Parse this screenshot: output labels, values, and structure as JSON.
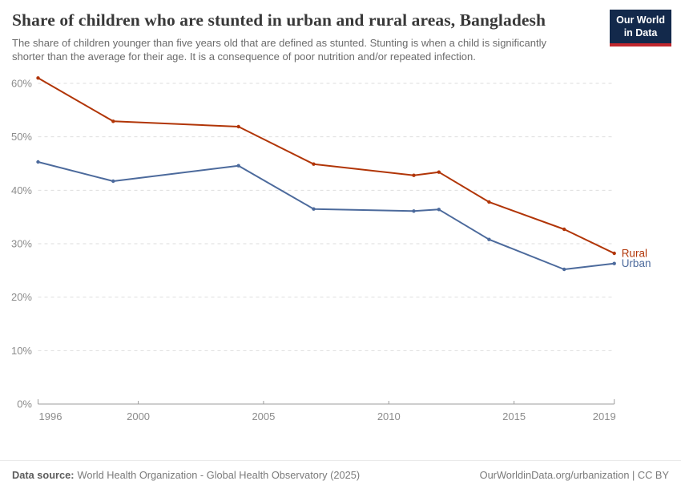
{
  "header": {
    "title": "Share of children who are stunted in urban and rural areas, Bangladesh",
    "subtitle": "The share of children younger than five years old that are defined as stunted. Stunting is when a child is significantly shorter than the average for their age. It is a consequence of poor nutrition and/or repeated infection.",
    "logo": {
      "line1": "Our World",
      "line2": "in Data",
      "bg_color": "#13294B",
      "accent_color": "#C1272D"
    }
  },
  "chart_data": {
    "type": "line",
    "x": [
      1996,
      1999,
      2004,
      2007,
      2011,
      2012,
      2014,
      2017,
      2019
    ],
    "series": [
      {
        "name": "Rural",
        "color": "#B13507",
        "values": [
          61.0,
          52.9,
          51.9,
          44.9,
          42.8,
          43.4,
          37.8,
          32.7,
          28.2
        ]
      },
      {
        "name": "Urban",
        "color": "#4C6A9C",
        "values": [
          45.3,
          41.7,
          44.6,
          36.5,
          36.1,
          36.4,
          30.8,
          25.2,
          26.3
        ]
      }
    ],
    "title": "Share of children who are stunted in urban and rural areas, Bangladesh",
    "xlabel": "",
    "ylabel": "",
    "xlim": [
      1996,
      2019
    ],
    "ylim": [
      0,
      63
    ],
    "x_ticks": [
      1996,
      2000,
      2005,
      2010,
      2015,
      2019
    ],
    "y_ticks": [
      0,
      10,
      20,
      30,
      40,
      50,
      60
    ],
    "y_tick_suffix": "%",
    "grid": "horizontal-dashed",
    "legend_position": "line-end-labels",
    "colors": {
      "grid_line": "#dedede",
      "axis_line": "#9c9c9c",
      "tick_text": "#8c8c8c"
    }
  },
  "footer": {
    "source_label": "Data source:",
    "source_text": "World Health Organization - Global Health Observatory (2025)",
    "license_text": "OurWorldinData.org/urbanization | CC BY"
  }
}
